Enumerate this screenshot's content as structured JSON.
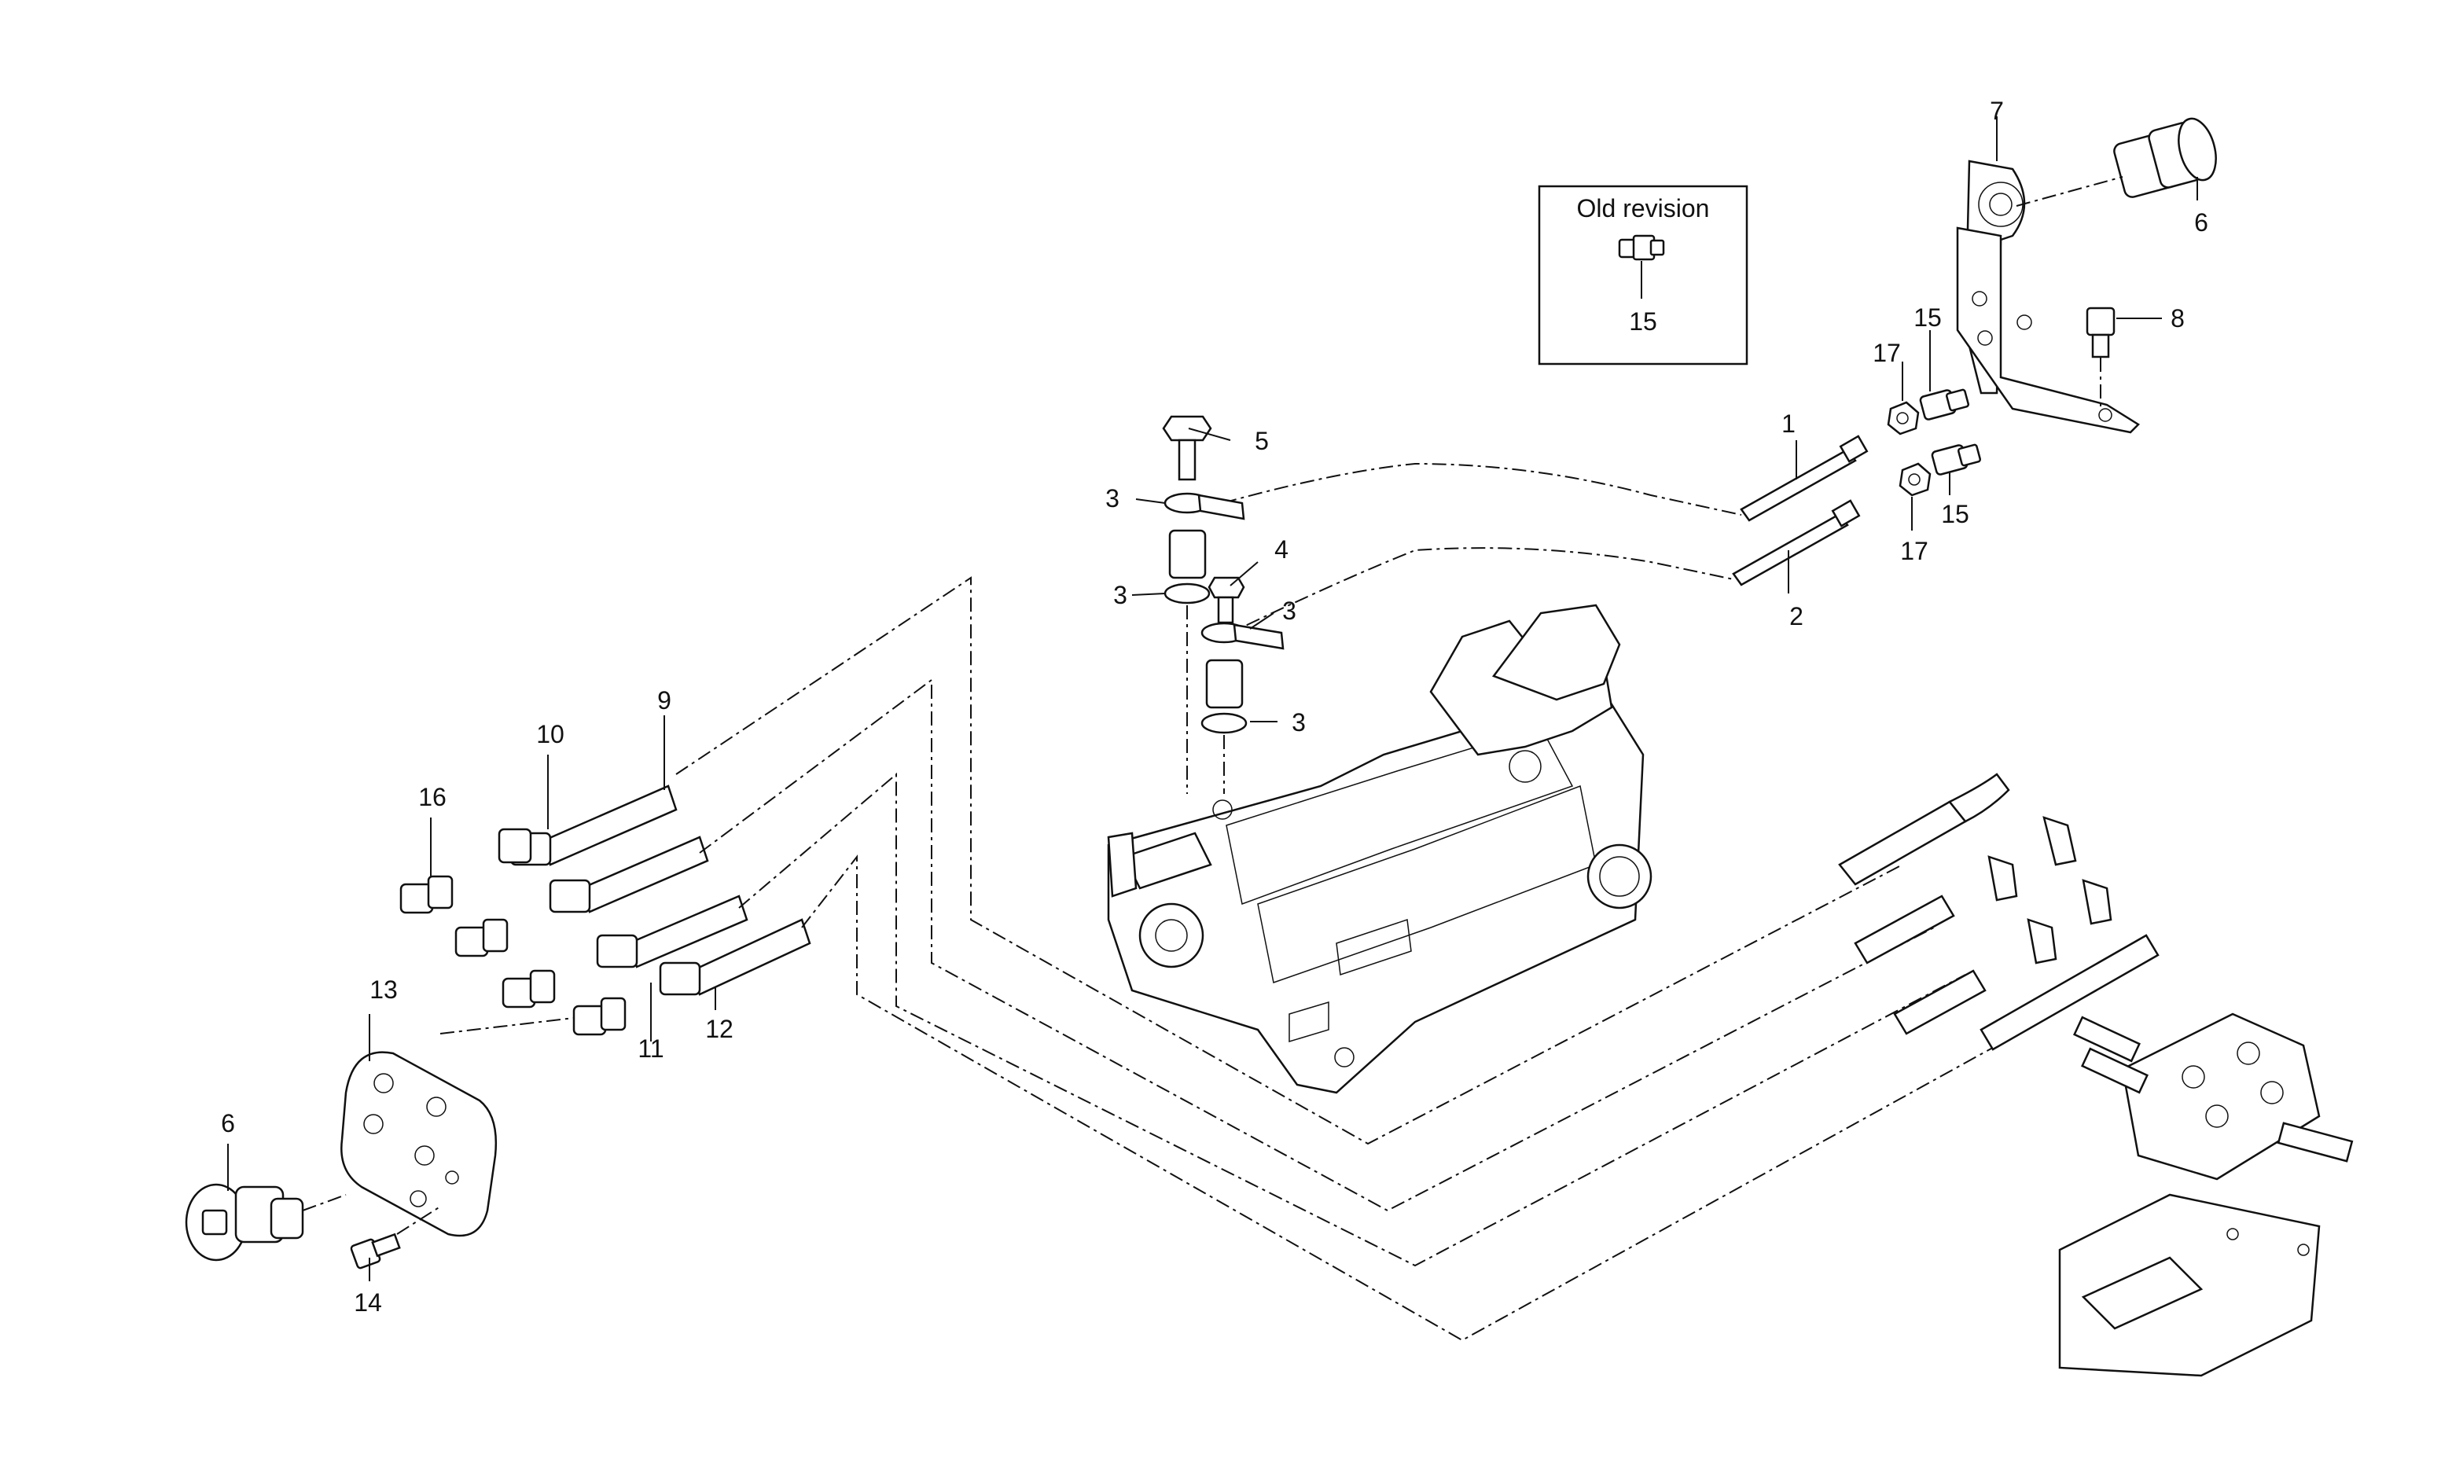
{
  "old_revision_box": {
    "title": "Old revision",
    "part": "15"
  },
  "callouts": {
    "c1": "1",
    "c2": "2",
    "c3a": "3",
    "c3b": "3",
    "c3c": "3",
    "c3d": "3",
    "c4": "4",
    "c5": "5",
    "c6a": "6",
    "c6b": "6",
    "c7": "7",
    "c8": "8",
    "c9": "9",
    "c10": "10",
    "c11": "11",
    "c12": "12",
    "c13": "13",
    "c14": "14",
    "c15a": "15",
    "c15b": "15",
    "c16": "16",
    "c17a": "17",
    "c17b": "17"
  }
}
